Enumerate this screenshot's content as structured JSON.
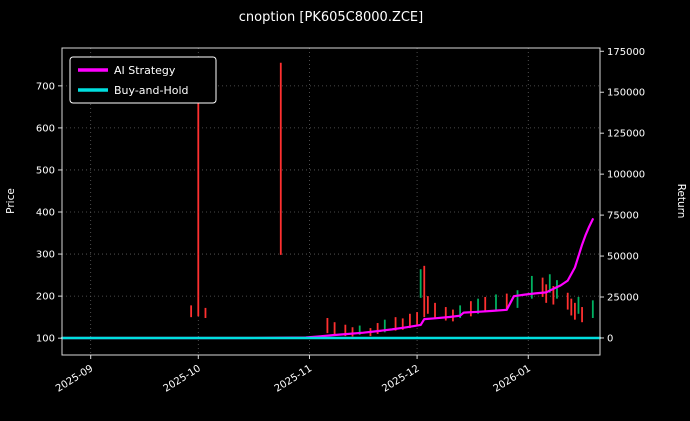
{
  "title": "cnoption [PK605C8000.ZCE]",
  "colors": {
    "background": "#000000",
    "text": "#ffffff",
    "grid": "#606060",
    "spine": "#d9d9d9"
  },
  "chart_data": {
    "type": "candlestick+line",
    "title": "cnoption [PK605C8000.ZCE]",
    "xlabel": "",
    "ylabel_left": "Price",
    "ylabel_right": "Return",
    "grid": true,
    "legend": {
      "position": "upper-left",
      "items": [
        {
          "label": "AI Strategy",
          "color": "#ff00ff"
        },
        {
          "label": "Buy-and-Hold",
          "color": "#00dede"
        }
      ]
    },
    "x_range": [
      "2025-08-24",
      "2026-01-21"
    ],
    "ylim_left": [
      60,
      790
    ],
    "ylim_right": [
      -10400,
      177000
    ],
    "yticks_left": [
      100,
      200,
      300,
      400,
      500,
      600,
      700
    ],
    "yticks_right": [
      0,
      25000,
      50000,
      75000,
      100000,
      125000,
      150000,
      175000
    ],
    "xticks": [
      {
        "label": "2025-09",
        "date": "2025-09-01"
      },
      {
        "label": "2025-10",
        "date": "2025-10-01"
      },
      {
        "label": "2025-11",
        "date": "2025-11-01"
      },
      {
        "label": "2025-12",
        "date": "2025-12-01"
      },
      {
        "label": "2026-01",
        "date": "2026-01-01"
      }
    ],
    "candle_colors": {
      "up": "#00b060",
      "down": "#ff3030"
    },
    "candles": [
      [
        "2025-09-29",
        150,
        178,
        "r"
      ],
      [
        "2025-10-01",
        152,
        685,
        "r"
      ],
      [
        "2025-10-03",
        148,
        172,
        "r"
      ],
      [
        "2025-10-24",
        298,
        755,
        "r"
      ],
      [
        "2025-11-06",
        112,
        148,
        "r"
      ],
      [
        "2025-11-08",
        108,
        138,
        "r"
      ],
      [
        "2025-11-11",
        105,
        132,
        "r"
      ],
      [
        "2025-11-13",
        104,
        126,
        "r"
      ],
      [
        "2025-11-15",
        108,
        130,
        "g"
      ],
      [
        "2025-11-18",
        105,
        124,
        "r"
      ],
      [
        "2025-11-20",
        110,
        136,
        "r"
      ],
      [
        "2025-11-22",
        114,
        144,
        "g"
      ],
      [
        "2025-11-25",
        118,
        150,
        "r"
      ],
      [
        "2025-11-27",
        120,
        147,
        "r"
      ],
      [
        "2025-11-29",
        124,
        158,
        "r"
      ],
      [
        "2025-12-01",
        128,
        162,
        "r"
      ],
      [
        "2025-12-02",
        196,
        264,
        "g"
      ],
      [
        "2025-12-03",
        150,
        272,
        "r"
      ],
      [
        "2025-12-04",
        158,
        200,
        "r"
      ],
      [
        "2025-12-06",
        148,
        184,
        "r"
      ],
      [
        "2025-12-09",
        142,
        174,
        "r"
      ],
      [
        "2025-12-11",
        140,
        168,
        "r"
      ],
      [
        "2025-12-13",
        148,
        178,
        "g"
      ],
      [
        "2025-12-16",
        152,
        188,
        "r"
      ],
      [
        "2025-12-18",
        158,
        194,
        "g"
      ],
      [
        "2025-12-20",
        162,
        198,
        "r"
      ],
      [
        "2025-12-23",
        168,
        204,
        "g"
      ],
      [
        "2025-12-26",
        166,
        206,
        "r"
      ],
      [
        "2025-12-29",
        172,
        214,
        "g"
      ],
      [
        "2026-01-02",
        194,
        248,
        "g"
      ],
      [
        "2026-01-05",
        198,
        244,
        "r"
      ],
      [
        "2026-01-06",
        184,
        228,
        "r"
      ],
      [
        "2026-01-07",
        208,
        252,
        "g"
      ],
      [
        "2026-01-08",
        180,
        224,
        "r"
      ],
      [
        "2026-01-09",
        194,
        238,
        "g"
      ],
      [
        "2026-01-12",
        168,
        208,
        "r"
      ],
      [
        "2026-01-13",
        154,
        194,
        "r"
      ],
      [
        "2026-01-14",
        144,
        184,
        "r"
      ],
      [
        "2026-01-15",
        158,
        198,
        "g"
      ],
      [
        "2026-01-16",
        138,
        174,
        "r"
      ],
      [
        "2026-01-19",
        148,
        190,
        "g"
      ]
    ],
    "series": [
      {
        "name": "AI Strategy",
        "axis": "right",
        "color": "#ff00ff",
        "width": 2.2,
        "points": [
          [
            "2025-08-24",
            0
          ],
          [
            "2025-10-15",
            0
          ],
          [
            "2025-10-31",
            300
          ],
          [
            "2025-11-04",
            1000
          ],
          [
            "2025-11-08",
            1800
          ],
          [
            "2025-11-12",
            2500
          ],
          [
            "2025-11-16",
            3200
          ],
          [
            "2025-11-20",
            4200
          ],
          [
            "2025-11-24",
            5200
          ],
          [
            "2025-11-28",
            6500
          ],
          [
            "2025-12-02",
            8000
          ],
          [
            "2025-12-03",
            11500
          ],
          [
            "2025-12-06",
            12000
          ],
          [
            "2025-12-10",
            12800
          ],
          [
            "2025-12-13",
            13600
          ],
          [
            "2025-12-14",
            15500
          ],
          [
            "2025-12-18",
            16000
          ],
          [
            "2025-12-22",
            16500
          ],
          [
            "2025-12-26",
            17200
          ],
          [
            "2025-12-28",
            25500
          ],
          [
            "2025-12-31",
            26500
          ],
          [
            "2026-01-03",
            27200
          ],
          [
            "2026-01-06",
            27800
          ],
          [
            "2026-01-08",
            30000
          ],
          [
            "2026-01-10",
            32000
          ],
          [
            "2026-01-12",
            35000
          ],
          [
            "2026-01-14",
            43000
          ],
          [
            "2026-01-15",
            50000
          ],
          [
            "2026-01-16",
            57000
          ],
          [
            "2026-01-17",
            63000
          ],
          [
            "2026-01-18",
            68000
          ],
          [
            "2026-01-19",
            72500
          ]
        ]
      },
      {
        "name": "Buy-and-Hold",
        "axis": "right",
        "color": "#00dede",
        "width": 2.4,
        "points": [
          [
            "2025-08-24",
            0
          ],
          [
            "2026-01-21",
            0
          ]
        ]
      }
    ]
  }
}
